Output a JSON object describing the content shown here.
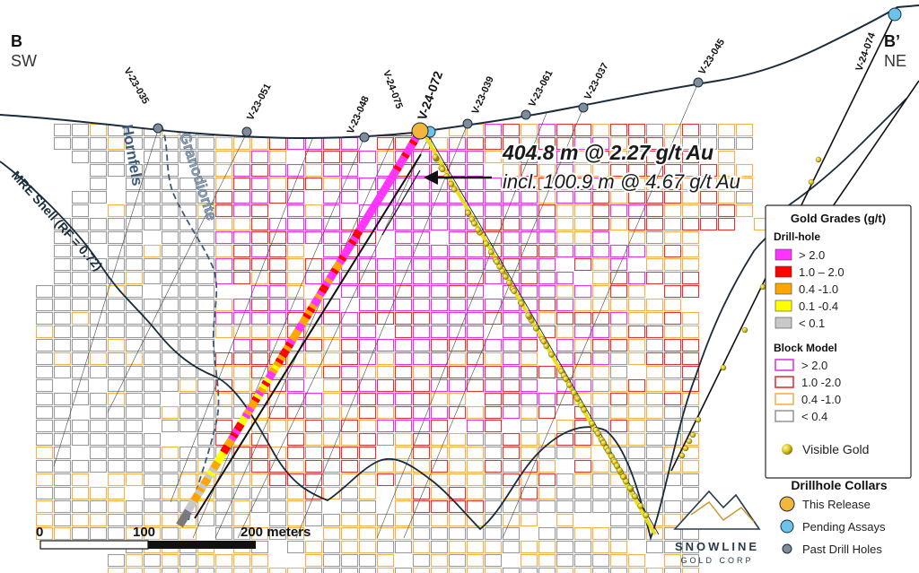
{
  "section": {
    "left_letter": "B",
    "left_dir": "SW",
    "right_letter": "B’",
    "right_dir": "NE"
  },
  "holes": [
    {
      "id": "V-23-035"
    },
    {
      "id": "V-23-051"
    },
    {
      "id": "V-23-048"
    },
    {
      "id": "V-24-075"
    },
    {
      "id": "V-24-072"
    },
    {
      "id": "V-23-039"
    },
    {
      "id": "V-23-061"
    },
    {
      "id": "V-23-037"
    },
    {
      "id": "V-23-045"
    },
    {
      "id": "V-24-074"
    }
  ],
  "labels": {
    "hornfels": "Hornfels",
    "granodiorite": "Granodiorite",
    "mre_shell": "MRE Shell (RF = 0.72)"
  },
  "callout": {
    "main": "404.8 m @ 2.27 g/t Au",
    "incl": "incl. 100.9 m @ 4.67 g/t Au"
  },
  "legend": {
    "title": "Gold Grades (g/t)",
    "drillhole_heading": "Drill-hole",
    "drillhole_items": [
      {
        "label": "> 2.0",
        "color": "#ff33ff"
      },
      {
        "label": "1.0 – 2.0",
        "color": "#ff0000"
      },
      {
        "label": "0.4 -1.0",
        "color": "#ffa500"
      },
      {
        "label": "0.1 -0.4",
        "color": "#ffff00"
      },
      {
        "label": "< 0.1",
        "color": "#c8c8c8"
      }
    ],
    "block_heading": "Block Model",
    "block_items": [
      {
        "label": "> 2.0",
        "color": "#e533e5"
      },
      {
        "label": "1.0 -2.0",
        "color": "#e53333"
      },
      {
        "label": "0.4 -1.0",
        "color": "#f5b04a"
      },
      {
        "label": "< 0.4",
        "color": "#9a9a9a"
      }
    ],
    "visible_gold": "Visible Gold",
    "collars_heading": "Drillhole Collars",
    "collar_items": [
      {
        "label": "This Release",
        "color": "#f2b63a"
      },
      {
        "label": "Pending Assays",
        "color": "#6bc3ea"
      },
      {
        "label": "Past Drill Holes",
        "color": "#7f8c99"
      }
    ]
  },
  "scale": {
    "tick0": "0",
    "tick100": "100",
    "tick200": "200 meters"
  },
  "logo": {
    "name": "SNOWLINE",
    "sub": "GOLD CORP"
  }
}
